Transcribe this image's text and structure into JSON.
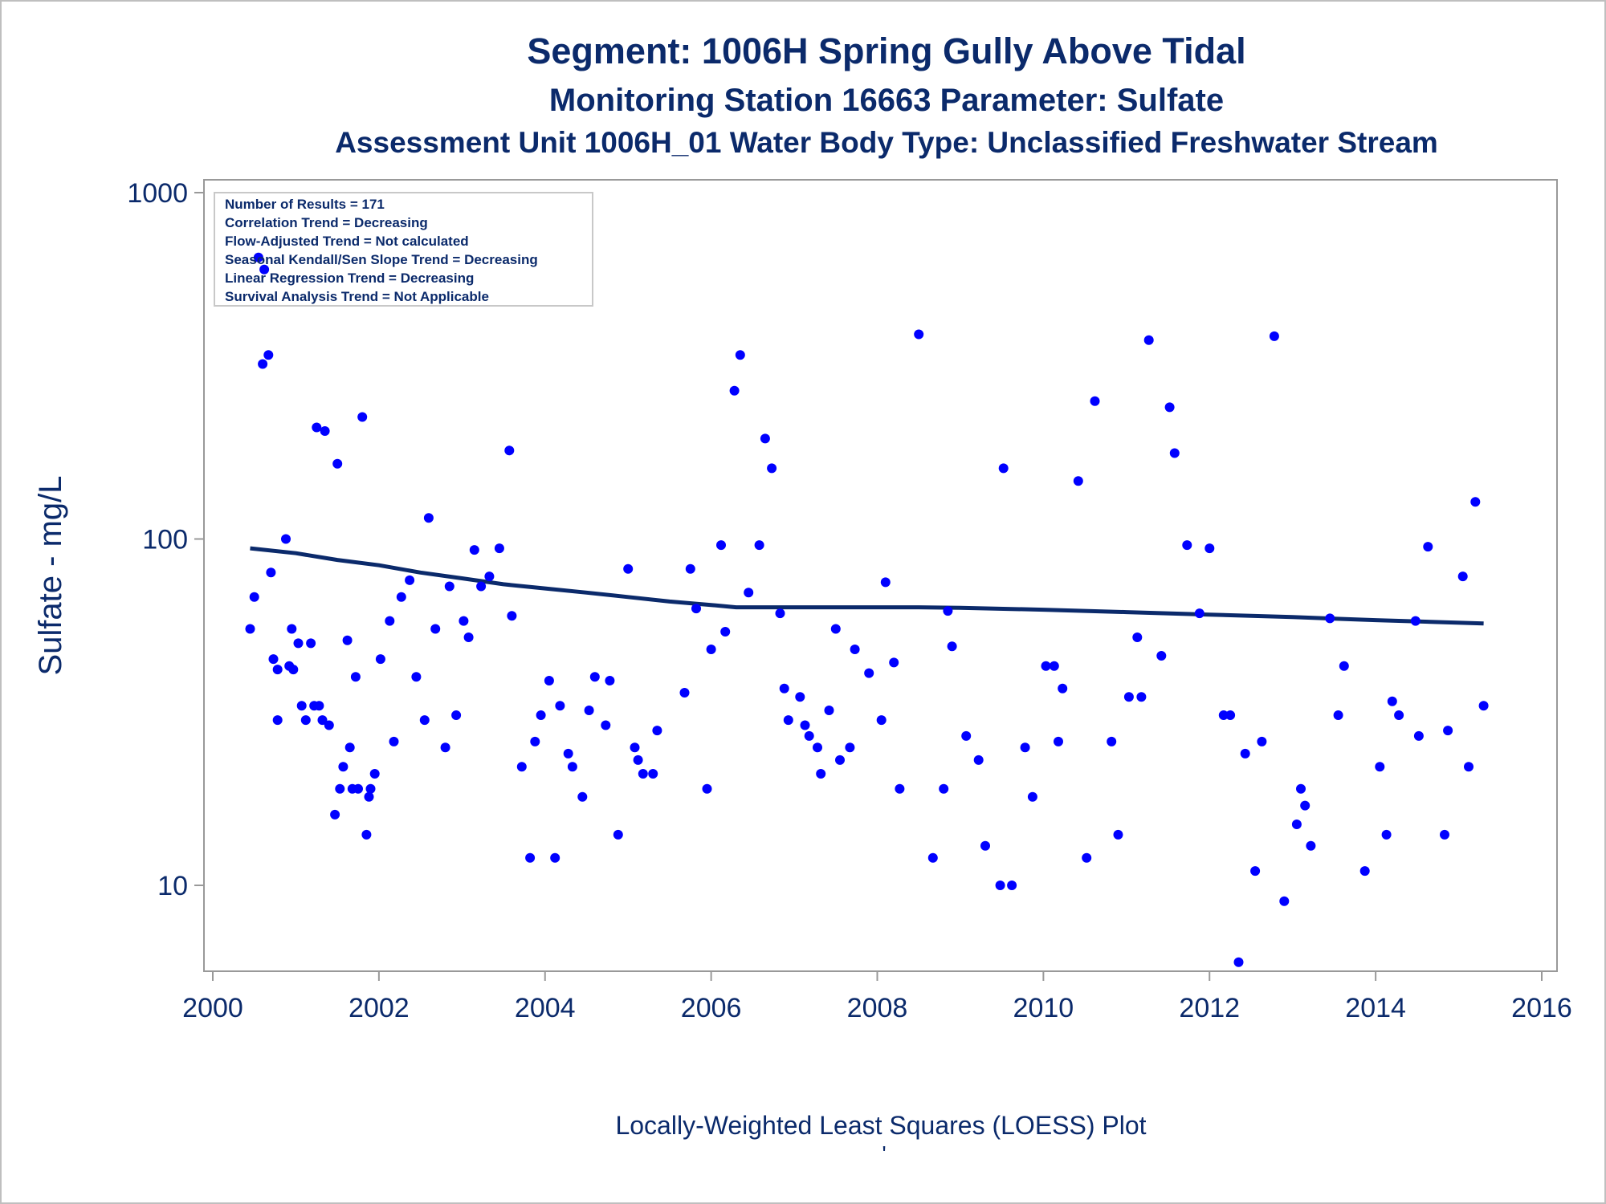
{
  "chart_data": {
    "type": "scatter",
    "title": "Segment: 1006H  Spring Gully Above Tidal",
    "subtitle": "Monitoring Station 16663 Parameter: Sulfate",
    "subtitle2": "Assessment Unit 1006H_01   Water Body Type: Unclassified Freshwater Stream",
    "ylabel": "Sulfate - mg/L",
    "footnote": "Locally-Weighted Least Squares (LOESS) Plot",
    "footnote2": "'",
    "xlim": [
      2000,
      2016
    ],
    "ylim": [
      5.7,
      1000
    ],
    "y_scale": "log",
    "x_ticks": [
      2000,
      2002,
      2004,
      2006,
      2008,
      2010,
      2012,
      2014,
      2016
    ],
    "x_tick_labels": [
      "2000",
      "2002",
      "2004",
      "2006",
      "2008",
      "2010",
      "2012",
      "2014",
      "2016"
    ],
    "y_ticks": [
      10,
      100,
      1000
    ],
    "y_tick_labels": [
      "10",
      "100",
      "1000"
    ],
    "grid": false,
    "legend_position": "top-left",
    "stats_box": [
      "Number of Results = 171",
      "Correlation Trend = Decreasing",
      "Flow-Adjusted Trend = Not calculated",
      "Seasonal Kendall/Sen Slope Trend = Decreasing",
      "Linear Regression Trend = Decreasing",
      "Survival Analysis Trend = Not Applicable"
    ],
    "colors": {
      "points": "#0000ff",
      "loess": "#0b2a6b",
      "text": "#0b2a6b",
      "frame": "#999999"
    },
    "series": [
      {
        "type": "scatter",
        "points": [
          [
            2000.45,
            55
          ],
          [
            2000.5,
            68
          ],
          [
            2000.55,
            650
          ],
          [
            2000.6,
            320
          ],
          [
            2000.62,
            600
          ],
          [
            2000.67,
            340
          ],
          [
            2000.7,
            80
          ],
          [
            2000.73,
            45
          ],
          [
            2000.78,
            42
          ],
          [
            2000.78,
            30
          ],
          [
            2000.88,
            100
          ],
          [
            2000.92,
            43
          ],
          [
            2000.95,
            55
          ],
          [
            2000.97,
            42
          ],
          [
            2001.03,
            50
          ],
          [
            2001.07,
            33
          ],
          [
            2001.12,
            30
          ],
          [
            2001.18,
            50
          ],
          [
            2001.22,
            33
          ],
          [
            2001.25,
            210
          ],
          [
            2001.28,
            33
          ],
          [
            2001.32,
            30
          ],
          [
            2001.35,
            205
          ],
          [
            2001.4,
            29
          ],
          [
            2001.47,
            16
          ],
          [
            2001.5,
            165
          ],
          [
            2001.53,
            19
          ],
          [
            2001.57,
            22
          ],
          [
            2001.62,
            51
          ],
          [
            2001.65,
            25
          ],
          [
            2001.68,
            19
          ],
          [
            2001.72,
            40
          ],
          [
            2001.75,
            19
          ],
          [
            2001.8,
            225
          ],
          [
            2001.85,
            14
          ],
          [
            2001.88,
            18
          ],
          [
            2001.9,
            19
          ],
          [
            2001.95,
            21
          ],
          [
            2002.02,
            45
          ],
          [
            2002.13,
            58
          ],
          [
            2002.18,
            26
          ],
          [
            2002.27,
            68
          ],
          [
            2002.37,
            76
          ],
          [
            2002.45,
            40
          ],
          [
            2002.55,
            30
          ],
          [
            2002.6,
            115
          ],
          [
            2002.68,
            55
          ],
          [
            2002.8,
            25
          ],
          [
            2002.85,
            73
          ],
          [
            2002.93,
            31
          ],
          [
            2003.02,
            58
          ],
          [
            2003.08,
            52
          ],
          [
            2003.15,
            93
          ],
          [
            2003.23,
            73
          ],
          [
            2003.33,
            78
          ],
          [
            2003.45,
            94
          ],
          [
            2003.57,
            180
          ],
          [
            2003.6,
            60
          ],
          [
            2003.72,
            22
          ],
          [
            2003.82,
            12
          ],
          [
            2003.88,
            26
          ],
          [
            2003.95,
            31
          ],
          [
            2004.05,
            39
          ],
          [
            2004.12,
            12
          ],
          [
            2004.18,
            33
          ],
          [
            2004.28,
            24
          ],
          [
            2004.33,
            22
          ],
          [
            2004.45,
            18
          ],
          [
            2004.53,
            32
          ],
          [
            2004.6,
            40
          ],
          [
            2004.73,
            29
          ],
          [
            2004.78,
            39
          ],
          [
            2004.88,
            14
          ],
          [
            2005.0,
            82
          ],
          [
            2005.08,
            25
          ],
          [
            2005.12,
            23
          ],
          [
            2005.18,
            21
          ],
          [
            2005.3,
            21
          ],
          [
            2005.35,
            28
          ],
          [
            2005.68,
            36
          ],
          [
            2005.75,
            82
          ],
          [
            2005.82,
            63
          ],
          [
            2005.95,
            19
          ],
          [
            2006.0,
            48
          ],
          [
            2006.12,
            96
          ],
          [
            2006.17,
            54
          ],
          [
            2006.28,
            268
          ],
          [
            2006.35,
            340
          ],
          [
            2006.45,
            70
          ],
          [
            2006.58,
            96
          ],
          [
            2006.65,
            195
          ],
          [
            2006.73,
            160
          ],
          [
            2006.83,
            61
          ],
          [
            2006.88,
            37
          ],
          [
            2006.93,
            30
          ],
          [
            2007.07,
            35
          ],
          [
            2007.13,
            29
          ],
          [
            2007.18,
            27
          ],
          [
            2007.28,
            25
          ],
          [
            2007.32,
            21
          ],
          [
            2007.42,
            32
          ],
          [
            2007.5,
            55
          ],
          [
            2007.55,
            23
          ],
          [
            2007.67,
            25
          ],
          [
            2007.73,
            48
          ],
          [
            2007.9,
            41
          ],
          [
            2008.05,
            30
          ],
          [
            2008.1,
            75
          ],
          [
            2008.2,
            44
          ],
          [
            2008.27,
            19
          ],
          [
            2008.5,
            390
          ],
          [
            2008.67,
            12
          ],
          [
            2008.8,
            19
          ],
          [
            2008.85,
            62
          ],
          [
            2008.9,
            49
          ],
          [
            2009.07,
            27
          ],
          [
            2009.22,
            23
          ],
          [
            2009.3,
            13
          ],
          [
            2009.48,
            10
          ],
          [
            2009.52,
            160
          ],
          [
            2009.62,
            10
          ],
          [
            2009.78,
            25
          ],
          [
            2009.87,
            18
          ],
          [
            2010.03,
            43
          ],
          [
            2010.13,
            43
          ],
          [
            2010.18,
            26
          ],
          [
            2010.23,
            37
          ],
          [
            2010.42,
            147
          ],
          [
            2010.52,
            12
          ],
          [
            2010.62,
            250
          ],
          [
            2010.82,
            26
          ],
          [
            2010.9,
            14
          ],
          [
            2011.03,
            35
          ],
          [
            2011.13,
            52
          ],
          [
            2011.18,
            35
          ],
          [
            2011.27,
            375
          ],
          [
            2011.42,
            46
          ],
          [
            2011.52,
            240
          ],
          [
            2011.58,
            177
          ],
          [
            2011.73,
            96
          ],
          [
            2011.88,
            61
          ],
          [
            2012.0,
            94
          ],
          [
            2012.17,
            31
          ],
          [
            2012.25,
            31
          ],
          [
            2012.35,
            6.0
          ],
          [
            2012.43,
            24
          ],
          [
            2012.55,
            11
          ],
          [
            2012.63,
            26
          ],
          [
            2012.78,
            385
          ],
          [
            2012.9,
            9
          ],
          [
            2013.05,
            15
          ],
          [
            2013.1,
            19
          ],
          [
            2013.15,
            17
          ],
          [
            2013.22,
            13
          ],
          [
            2013.45,
            59
          ],
          [
            2013.55,
            31
          ],
          [
            2013.62,
            43
          ],
          [
            2013.87,
            11
          ],
          [
            2014.05,
            22
          ],
          [
            2014.13,
            14
          ],
          [
            2014.2,
            34
          ],
          [
            2014.28,
            31
          ],
          [
            2014.48,
            58
          ],
          [
            2014.52,
            27
          ],
          [
            2014.63,
            95
          ],
          [
            2014.83,
            14
          ],
          [
            2014.87,
            28
          ],
          [
            2015.05,
            78
          ],
          [
            2015.12,
            22
          ],
          [
            2015.2,
            128
          ],
          [
            2015.3,
            33
          ]
        ]
      },
      {
        "type": "line",
        "points": [
          [
            2000.45,
            94
          ],
          [
            2001.0,
            91
          ],
          [
            2001.5,
            87
          ],
          [
            2002.0,
            84
          ],
          [
            2002.5,
            80
          ],
          [
            2003.0,
            77
          ],
          [
            2003.5,
            74
          ],
          [
            2004.0,
            72
          ],
          [
            2004.5,
            70
          ],
          [
            2005.0,
            68
          ],
          [
            2005.5,
            66
          ],
          [
            2006.0,
            64.5
          ],
          [
            2006.3,
            63.5
          ],
          [
            2007.0,
            63.5
          ],
          [
            2008.0,
            63.5
          ],
          [
            2008.5,
            63.5
          ],
          [
            2009.0,
            63.3
          ],
          [
            2010.0,
            62.5
          ],
          [
            2011.0,
            61.5
          ],
          [
            2012.0,
            60.5
          ],
          [
            2013.0,
            59.5
          ],
          [
            2014.0,
            58.3
          ],
          [
            2015.3,
            57
          ]
        ]
      }
    ]
  }
}
